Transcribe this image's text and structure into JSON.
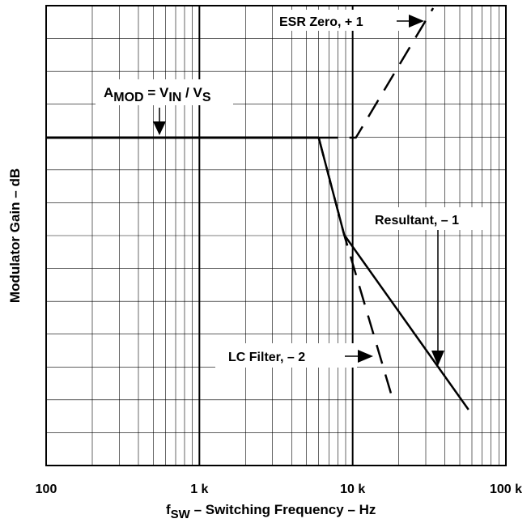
{
  "chart_data": {
    "type": "line",
    "title": "",
    "x_scale": "log",
    "xlim": [
      100,
      100000
    ],
    "grid": true,
    "x_ticks": [
      {
        "value": 100,
        "label": "100"
      },
      {
        "value": 1000,
        "label": "1 k"
      },
      {
        "value": 10000,
        "label": "10 k"
      },
      {
        "value": 100000,
        "label": "100 k"
      }
    ],
    "xlabel": {
      "main": "f",
      "sub": "SW",
      "rest": " – Switching Frequency – Hz"
    },
    "ylabel": "Modulator Gain – dB",
    "series": [
      {
        "name": "AMOD flat",
        "style": "solid-thick",
        "points": [
          {
            "x": 100,
            "y": 0
          },
          {
            "x": 6000,
            "y": 0
          }
        ]
      },
      {
        "name": "Resultant, – 1",
        "style": "solid",
        "points": [
          {
            "x": 6000,
            "y": 0
          },
          {
            "x": 8800,
            "y": -3.0
          },
          {
            "x": 57000,
            "y": -8.4
          }
        ]
      },
      {
        "name": "LC Filter, – 2",
        "style": "dashed",
        "points": [
          {
            "x": 6000,
            "y": 0
          },
          {
            "x": 8800,
            "y": -3.0
          },
          {
            "x": 18300,
            "y": -8.1
          }
        ]
      },
      {
        "name": "ESR Zero, + 1",
        "style": "dashed",
        "points": [
          {
            "x": 6000,
            "y": 0
          },
          {
            "x": 10500,
            "y": 0
          },
          {
            "x": 33500,
            "y": 4.0
          }
        ]
      }
    ],
    "annotations": [
      {
        "id": "amod",
        "main": "A",
        "sub1": "MOD",
        "mid": " = V",
        "sub2": "IN",
        "mid2": " / V",
        "sub3": "S"
      },
      {
        "id": "esr",
        "text": "ESR Zero, + 1"
      },
      {
        "id": "resultant",
        "text": "Resultant, – 1"
      },
      {
        "id": "lcfilter",
        "text": "LC Filter, – 2"
      }
    ]
  }
}
